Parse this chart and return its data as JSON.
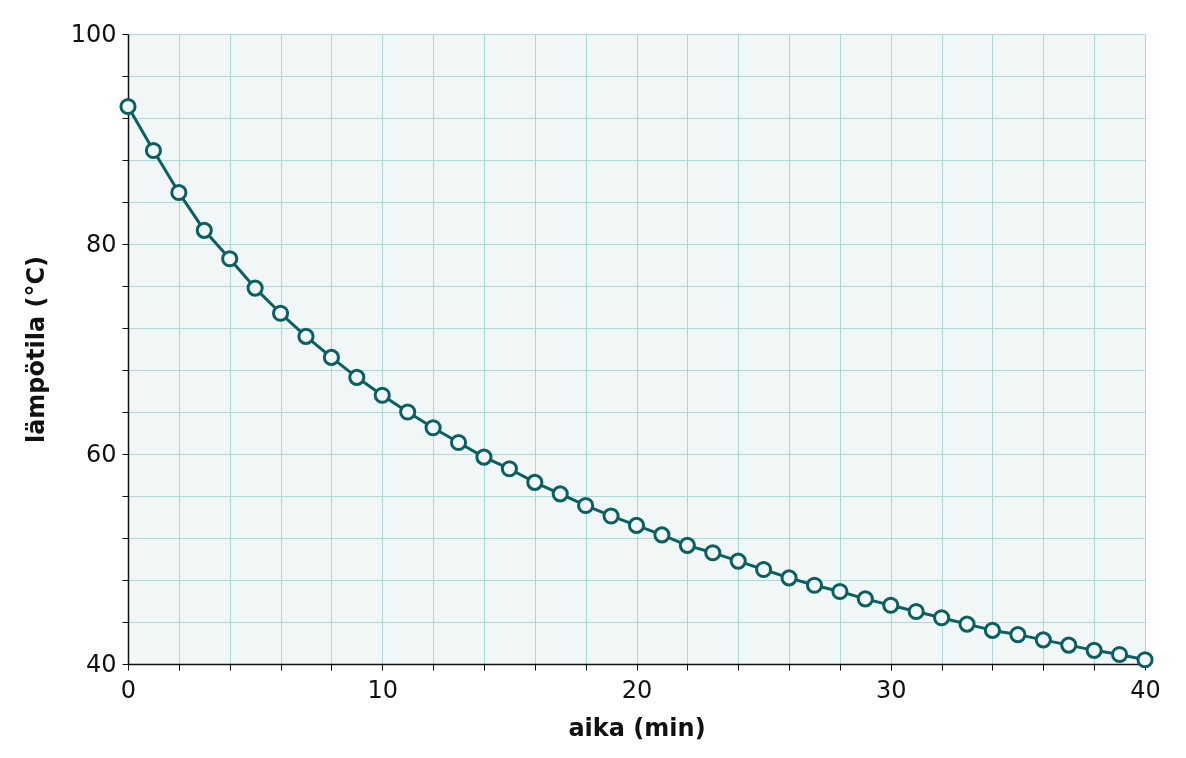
{
  "chart_data": {
    "type": "line",
    "xlabel": "aika (min)",
    "ylabel": "lämpötila (°C)",
    "x": [
      0,
      1,
      2,
      3,
      4,
      5,
      6,
      7,
      8,
      9,
      10,
      11,
      12,
      13,
      14,
      15,
      16,
      17,
      18,
      19,
      20,
      21,
      22,
      23,
      24,
      25,
      26,
      27,
      28,
      29,
      30,
      31,
      32,
      33,
      34,
      35,
      36,
      37,
      38,
      39,
      40
    ],
    "series": [
      {
        "color": "#0b5f60",
        "values": [
          93.1,
          88.9,
          84.9,
          81.3,
          78.6,
          75.8,
          73.4,
          71.2,
          69.2,
          67.3,
          65.6,
          64.0,
          62.5,
          61.1,
          59.7,
          58.6,
          57.3,
          56.2,
          55.1,
          54.1,
          53.2,
          52.3,
          51.3,
          50.6,
          49.8,
          49.0,
          48.2,
          47.5,
          46.9,
          46.2,
          45.6,
          45.0,
          44.4,
          43.8,
          43.2,
          42.8,
          42.3,
          41.8,
          41.3,
          40.9,
          40.4
        ]
      }
    ],
    "xlim": [
      0,
      40
    ],
    "xticks": [
      0,
      {
        "value": 2,
        "label": null
      },
      {
        "value": 4,
        "label": null
      },
      {
        "value": 6,
        "label": null
      },
      {
        "value": 8,
        "label": null
      },
      10,
      {
        "value": 12,
        "label": null
      },
      {
        "value": 14,
        "label": null
      },
      {
        "value": 16,
        "label": null
      },
      {
        "value": 18,
        "label": null
      },
      20,
      {
        "value": 22,
        "label": null
      },
      {
        "value": 24,
        "label": null
      },
      {
        "value": 26,
        "label": null
      },
      {
        "value": 28,
        "label": null
      },
      30,
      {
        "value": 32,
        "label": null
      },
      {
        "value": 34,
        "label": null
      },
      {
        "value": 36,
        "label": null
      },
      {
        "value": 38,
        "label": null
      },
      40
    ],
    "ylim": [
      40,
      100
    ],
    "yticks": [
      40,
      {
        "value": 44,
        "label": null
      },
      {
        "value": 48,
        "label": null
      },
      {
        "value": 52,
        "label": null
      },
      {
        "value": 56,
        "label": null
      },
      60,
      {
        "value": 64,
        "label": null
      },
      {
        "value": 68,
        "label": null
      },
      {
        "value": 72,
        "label": null
      },
      {
        "value": 76,
        "label": null
      },
      80,
      {
        "value": 84,
        "label": null
      },
      {
        "value": 88,
        "label": null
      },
      {
        "value": 92,
        "label": null
      },
      {
        "value": 96,
        "label": null
      },
      100
    ],
    "grid": true,
    "legend": false,
    "marker": "circle",
    "line_style": "solid"
  }
}
